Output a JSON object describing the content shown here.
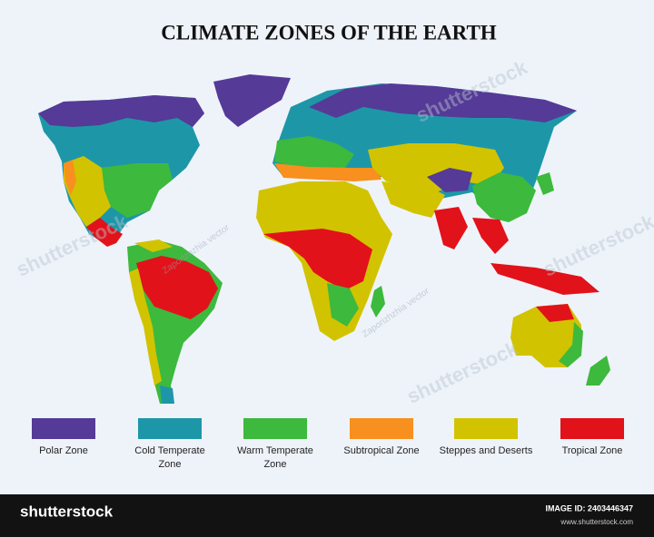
{
  "header": {
    "title": "CLIMATE ZONES OF THE EARTH"
  },
  "legend": [
    {
      "lines": [
        "Polar Zone"
      ],
      "color": "#553a97"
    },
    {
      "lines": [
        "Cold Temperate",
        "Zone"
      ],
      "color": "#1d97a8"
    },
    {
      "lines": [
        "Warm Temperate",
        "Zone"
      ],
      "color": "#3db93d"
    },
    {
      "lines": [
        "Subtropical Zone"
      ],
      "color": "#f7901e"
    },
    {
      "lines": [
        "Steppes and Deserts"
      ],
      "color": "#d2c300"
    },
    {
      "lines": [
        "Tropical Zone"
      ],
      "color": "#e2121a"
    }
  ],
  "watermarks": {
    "brand": "shutterstock",
    "author": "Zaporizhzhia vector"
  },
  "footer": {
    "brand": "shutterstock",
    "image_id": "IMAGE ID: 2403446347",
    "site": "www.shutterstock.com"
  }
}
